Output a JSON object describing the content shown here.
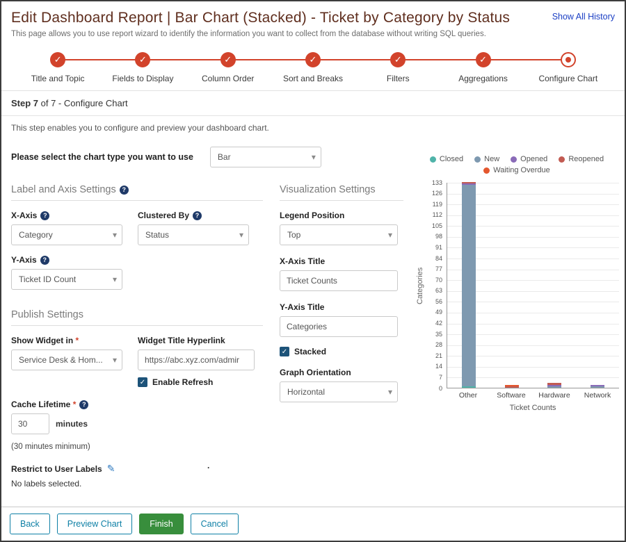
{
  "header": {
    "title": "Edit Dashboard Report | Bar Chart (Stacked) - Ticket by Category by Status",
    "history_link": "Show All History",
    "subtitle": "This page allows you to use report wizard to identify the information you want to collect from the database without writing SQL queries."
  },
  "stepper": {
    "steps": [
      {
        "label": "Title and Topic",
        "state": "complete"
      },
      {
        "label": "Fields to Display",
        "state": "complete"
      },
      {
        "label": "Column Order",
        "state": "complete"
      },
      {
        "label": "Sort and Breaks",
        "state": "complete"
      },
      {
        "label": "Filters",
        "state": "complete"
      },
      {
        "label": "Aggregations",
        "state": "complete"
      },
      {
        "label": "Configure Chart",
        "state": "current"
      }
    ]
  },
  "step_heading": {
    "bold": "Step 7",
    "rest": "of 7 - Configure Chart"
  },
  "step_description": "This step enables you to configure and preview your dashboard chart.",
  "chart_type": {
    "label": "Please select the chart type you want to use",
    "value": "Bar"
  },
  "sections": {
    "label_axis": {
      "heading": "Label and Axis Settings",
      "x_axis_label": "X-Axis",
      "x_axis_value": "Category",
      "clustered_by_label": "Clustered By",
      "clustered_by_value": "Status",
      "y_axis_label": "Y-Axis",
      "y_axis_value": "Ticket ID Count"
    },
    "visualization": {
      "heading": "Visualization Settings",
      "legend_position_label": "Legend Position",
      "legend_position_value": "Top",
      "x_axis_title_label": "X-Axis Title",
      "x_axis_title_value": "Ticket Counts",
      "y_axis_title_label": "Y-Axis Title",
      "y_axis_title_value": "Categories",
      "stacked_label": "Stacked",
      "stacked_checked": true,
      "graph_orientation_label": "Graph Orientation",
      "graph_orientation_value": "Horizontal"
    },
    "publish": {
      "heading": "Publish Settings",
      "show_widget_label": "Show Widget in",
      "show_widget_value": "Service Desk & Hom...",
      "hyperlink_label": "Widget Title Hyperlink",
      "hyperlink_value": "https://abc.xyz.com/admir",
      "enable_refresh_label": "Enable Refresh",
      "enable_refresh_checked": true,
      "cache_label": "Cache Lifetime",
      "cache_value": "30",
      "cache_unit": "minutes",
      "cache_note": "(30 minutes minimum)",
      "restrict_label": "Restrict to User Labels",
      "restrict_status": "No labels selected."
    }
  },
  "misc": {
    "stray_text": "."
  },
  "footer": {
    "buttons": [
      {
        "label": "Back",
        "style": "outline"
      },
      {
        "label": "Preview Chart",
        "style": "outline"
      },
      {
        "label": "Finish",
        "style": "primary"
      },
      {
        "label": "Cancel",
        "style": "outline"
      }
    ]
  },
  "chart_data": {
    "type": "bar",
    "stacked": true,
    "categories": [
      "Other",
      "Software",
      "Hardware",
      "Network"
    ],
    "series": [
      {
        "name": "Closed",
        "color": "#4fb3a9",
        "values": [
          1,
          0,
          0,
          0
        ]
      },
      {
        "name": "New",
        "color": "#7e99b0",
        "values": [
          130,
          0,
          1,
          1
        ]
      },
      {
        "name": "Opened",
        "color": "#8a6bb8",
        "values": [
          1,
          0,
          1,
          1
        ]
      },
      {
        "name": "Reopened",
        "color": "#c25b52",
        "values": [
          1,
          1,
          1,
          0
        ]
      },
      {
        "name": "Waiting Overdue",
        "color": "#e4572e",
        "values": [
          0,
          1,
          0,
          0
        ]
      }
    ],
    "xlabel": "Ticket Counts",
    "ylabel": "Categories",
    "ylim": [
      0,
      133
    ],
    "ytick_step": 7,
    "legend_position": "top",
    "grid": true
  }
}
